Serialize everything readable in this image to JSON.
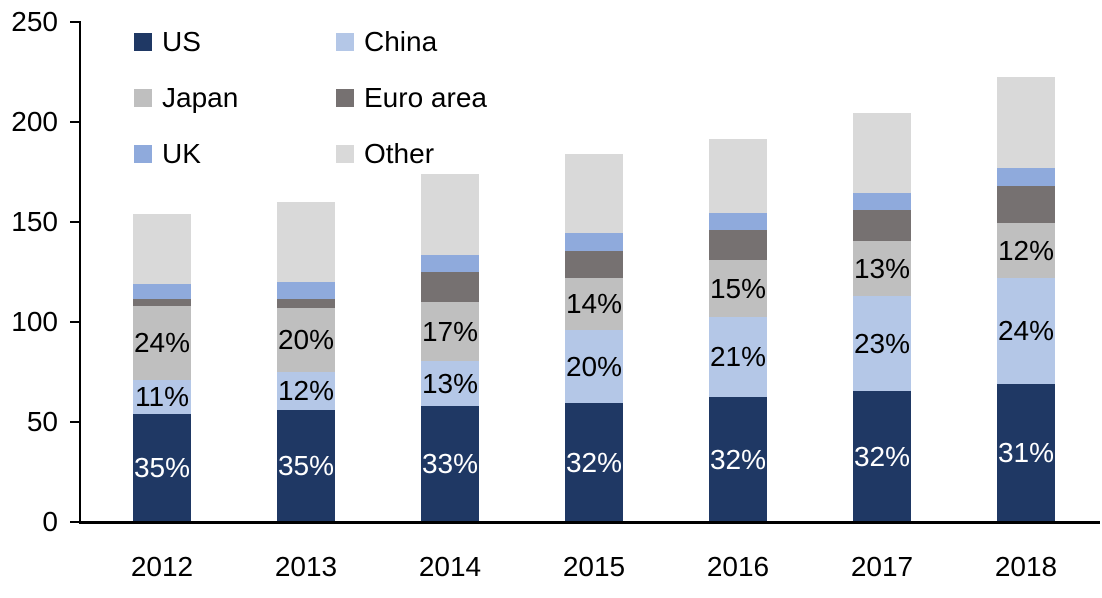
{
  "chart_data": {
    "type": "bar",
    "stacked": true,
    "title": "",
    "xlabel": "",
    "ylabel": "",
    "categories": [
      "2012",
      "2013",
      "2014",
      "2015",
      "2016",
      "2017",
      "2018"
    ],
    "series": [
      {
        "name": "US",
        "color": "#1F3864",
        "values": [
          54,
          56,
          58,
          59.5,
          62.5,
          65.5,
          69
        ],
        "labels": [
          "35%",
          "35%",
          "33%",
          "32%",
          "32%",
          "32%",
          "31%"
        ],
        "label_color": "#FFFFFF"
      },
      {
        "name": "China",
        "color": "#B4C7E7",
        "values": [
          17,
          19,
          22.5,
          36.5,
          40,
          47.5,
          53
        ],
        "labels": [
          "11%",
          "12%",
          "13%",
          "20%",
          "21%",
          "23%",
          "24%"
        ],
        "label_color": "#000000"
      },
      {
        "name": "Japan",
        "color": "#BFBFBF",
        "values": [
          37,
          32,
          29.5,
          26,
          28.5,
          27.5,
          27.5
        ],
        "labels": [
          "24%",
          "20%",
          "17%",
          "14%",
          "15%",
          "13%",
          "12%"
        ],
        "label_color": "#000000"
      },
      {
        "name": "Euro area",
        "color": "#767171",
        "values": [
          3.5,
          4.5,
          15,
          13.5,
          15,
          15.5,
          18.5
        ],
        "labels": [
          null,
          null,
          null,
          null,
          null,
          null,
          null
        ],
        "label_color": "#000000"
      },
      {
        "name": "UK",
        "color": "#8FAADC",
        "values": [
          7.5,
          8.5,
          8.5,
          9,
          8.5,
          8.5,
          9
        ],
        "labels": [
          null,
          null,
          null,
          null,
          null,
          null,
          null
        ],
        "label_color": "#000000"
      },
      {
        "name": "Other",
        "color": "#D9D9D9",
        "values": [
          35,
          40,
          40.5,
          39.5,
          37,
          40,
          45.5
        ],
        "labels": [
          null,
          null,
          null,
          null,
          null,
          null,
          null
        ],
        "label_color": "#000000"
      }
    ],
    "totals": [
      154,
      160,
      174,
      184,
      191.5,
      204.5,
      222.5
    ],
    "ylim": [
      0,
      250
    ],
    "y_ticks": [
      0,
      50,
      100,
      150,
      200,
      250
    ],
    "grid": false,
    "legend_position": "top-left",
    "axis_color": "#000000"
  }
}
